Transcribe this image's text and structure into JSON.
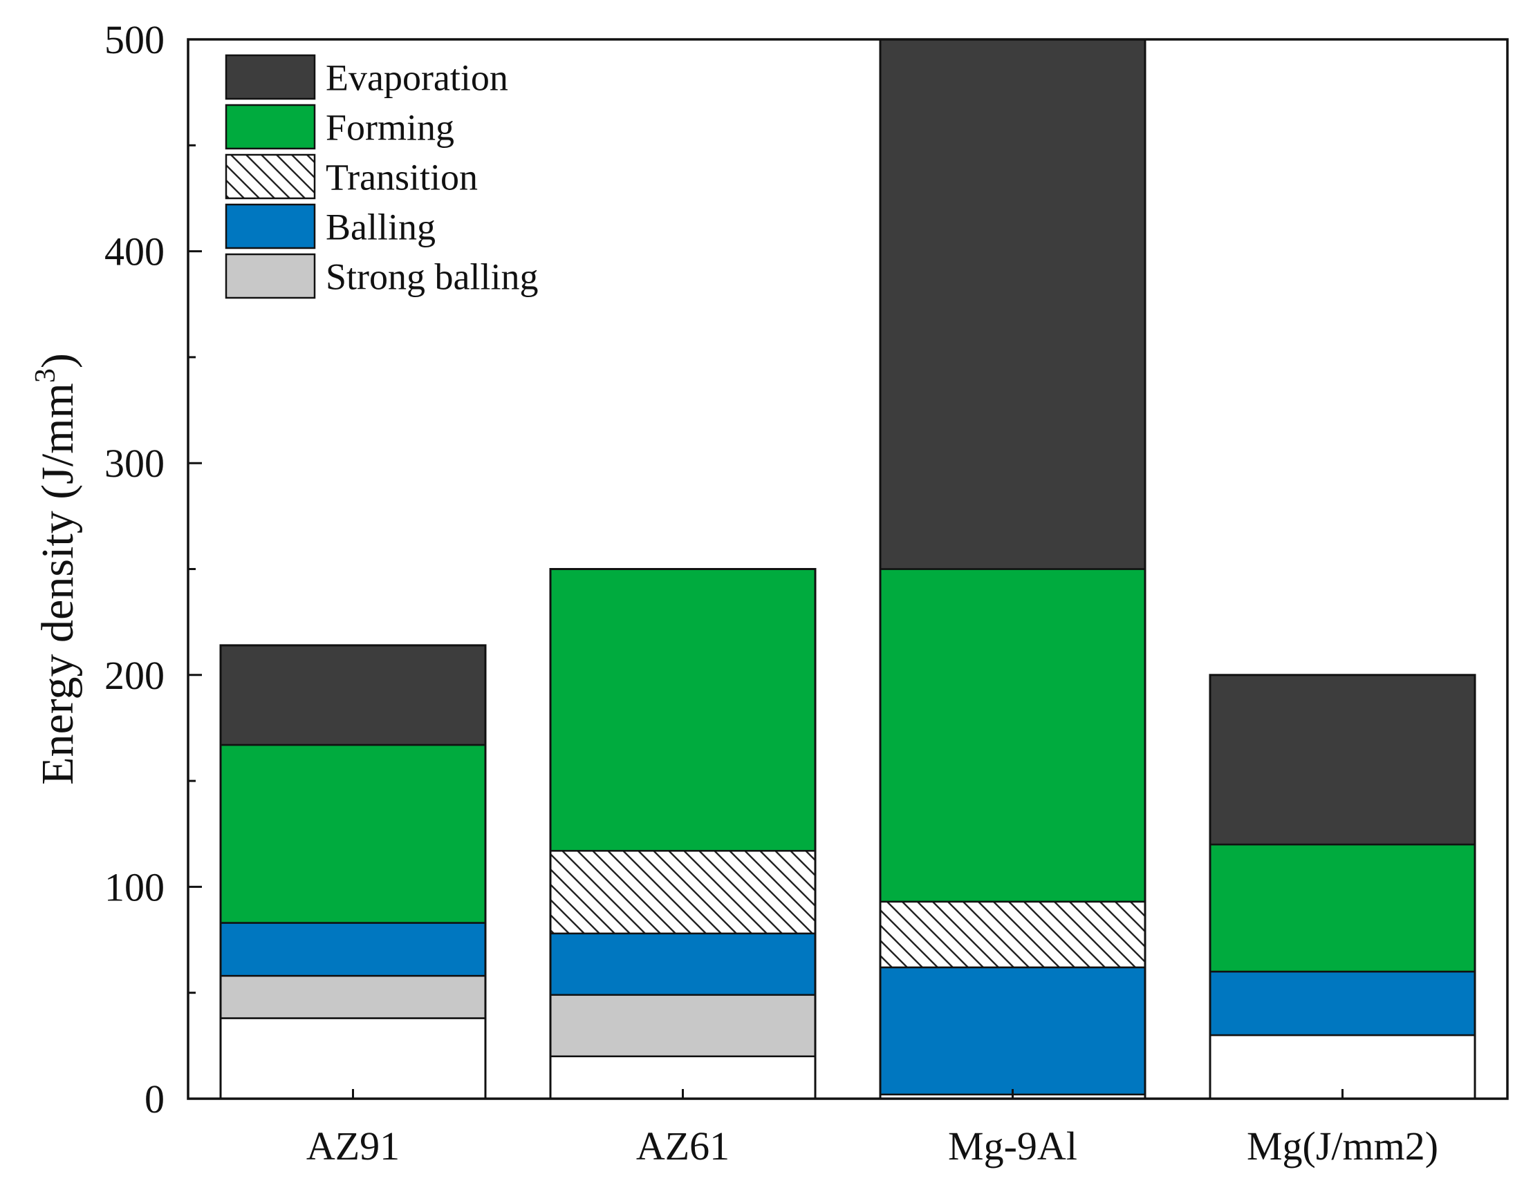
{
  "chart_data": {
    "type": "bar",
    "stacked": true,
    "title": "",
    "xlabel": "",
    "ylabel": "Energy density (J/mm",
    "ylabel_sup": "3",
    "ylabel_close": ")",
    "ylim": [
      0,
      500
    ],
    "yticks": [
      0,
      100,
      200,
      300,
      400,
      500
    ],
    "categories": [
      "AZ91",
      "AZ61",
      "Mg-9Al",
      "Mg(J/mm2)"
    ],
    "legend_position": "top-left",
    "series": [
      {
        "name": "Strong balling",
        "color": "#c8c8c8",
        "pattern": "solid",
        "ranges": [
          [
            38,
            58
          ],
          [
            20,
            49
          ],
          null,
          null
        ]
      },
      {
        "name": "Balling",
        "color": "#0077c0",
        "pattern": "solid",
        "ranges": [
          [
            58,
            83
          ],
          [
            49,
            78
          ],
          [
            2,
            62
          ],
          [
            30,
            60
          ]
        ]
      },
      {
        "name": "Transition",
        "color": "#ffffff",
        "pattern": "hatch",
        "ranges": [
          null,
          [
            78,
            117
          ],
          [
            62,
            93
          ],
          null
        ]
      },
      {
        "name": "Forming",
        "color": "#00ab3e",
        "pattern": "solid",
        "ranges": [
          [
            83,
            167
          ],
          [
            117,
            250
          ],
          [
            93,
            250
          ],
          [
            60,
            120
          ]
        ]
      },
      {
        "name": "Evaporation",
        "color": "#3d3d3d",
        "pattern": "solid",
        "ranges": [
          [
            167,
            214
          ],
          null,
          [
            250,
            500
          ],
          [
            120,
            200
          ]
        ]
      }
    ],
    "unshaded_below": [
      38,
      20,
      2,
      30
    ],
    "legend_order": [
      "Evaporation",
      "Forming",
      "Transition",
      "Balling",
      "Strong balling"
    ]
  }
}
